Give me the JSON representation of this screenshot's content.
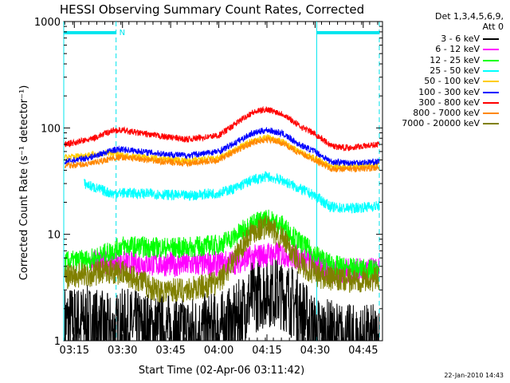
{
  "chart_data": {
    "type": "line",
    "title": "HESSI Observing Summary Count Rates, Corrected",
    "ylabel": "Corrected Count Rate (s⁻¹ detector⁻¹)",
    "xlabel": "Start Time (02-Apr-06 03:11:42)",
    "y_scale": "log",
    "ylim": [
      1,
      1000
    ],
    "yticks": [
      1,
      10,
      100,
      1000
    ],
    "ytick_labels": [
      "1",
      "10",
      "100",
      "1000"
    ],
    "xlim": [
      191.7,
      291
    ],
    "x_unit": "minutes after 00:00 UT, 02-Apr-06",
    "xticks": [
      195,
      210,
      225,
      240,
      255,
      270,
      285
    ],
    "xtick_labels": [
      "03:15",
      "03:30",
      "03:45",
      "04:00",
      "04:15",
      "04:30",
      "04:45"
    ],
    "legend_title": [
      "Det 1,3,4,5,6,9,",
      "Att 0"
    ],
    "footer_date": "22-Jan-2010 14:43",
    "night_marker": "N",
    "night_intervals": [
      [
        191.7,
        208
      ],
      [
        270.5,
        290
      ]
    ],
    "vertical_markers": [
      191.7,
      208,
      270.5,
      290
    ],
    "series": [
      {
        "name": "3 - 6 keV",
        "color": "#000000",
        "x": [
          192,
          200,
          207,
          210,
          220,
          230,
          240,
          245,
          250,
          255,
          260,
          265,
          270,
          275,
          280,
          290
        ],
        "y": [
          1.5,
          1.5,
          1.2,
          1.4,
          1.3,
          1.2,
          1.3,
          1.5,
          2.5,
          3.0,
          2.8,
          2.0,
          1.2,
          1.1,
          1.0,
          1.0
        ]
      },
      {
        "name": "6 - 12 keV",
        "color": "#ff00ff",
        "x": [
          200,
          205,
          210,
          220,
          230,
          240,
          245,
          250,
          255,
          260,
          265,
          270,
          275,
          280,
          290
        ],
        "y": [
          5.5,
          5.5,
          5.3,
          5.3,
          5.2,
          5.3,
          5.5,
          6.0,
          6.5,
          6.5,
          6.0,
          5.3,
          4.5,
          4.5,
          4.6
        ]
      },
      {
        "name": "12 - 25 keV",
        "color": "#00ff00",
        "x": [
          192,
          200,
          207,
          210,
          220,
          230,
          240,
          245,
          250,
          255,
          260,
          265,
          270,
          275,
          280,
          290
        ],
        "y": [
          5.5,
          5.8,
          7.0,
          7.8,
          7.5,
          7.5,
          8.0,
          9.5,
          12.5,
          14.0,
          12.0,
          8.5,
          6.5,
          5.2,
          4.8,
          4.6
        ]
      },
      {
        "name": "25 - 50 keV",
        "color": "#00ffff",
        "x": [
          198,
          202,
          207,
          210,
          220,
          230,
          240,
          245,
          250,
          255,
          260,
          265,
          270,
          275,
          280,
          290
        ],
        "y": [
          30,
          27,
          24,
          24.5,
          24,
          23,
          24.5,
          27,
          32,
          35,
          32,
          27,
          23,
          18,
          17.5,
          18.5
        ]
      },
      {
        "name": "50 - 100 keV",
        "color": "#ffcc00",
        "x": [
          192,
          200,
          207,
          210,
          220,
          230,
          240,
          245,
          250,
          255,
          260,
          265,
          270,
          275,
          280,
          290
        ],
        "y": [
          53,
          56,
          58,
          55,
          52,
          49,
          52,
          62,
          75,
          82,
          74,
          60,
          52,
          43,
          43,
          45
        ]
      },
      {
        "name": "100 - 300 keV",
        "color": "#0000ff",
        "x": [
          192,
          200,
          207,
          210,
          220,
          230,
          240,
          245,
          250,
          255,
          260,
          265,
          270,
          275,
          280,
          290
        ],
        "y": [
          48,
          53,
          62,
          63,
          58,
          55,
          60,
          72,
          88,
          96,
          88,
          70,
          60,
          48,
          47,
          48
        ]
      },
      {
        "name": "300 - 800 keV",
        "color": "#ff0000",
        "x": [
          192,
          200,
          207,
          210,
          220,
          230,
          240,
          245,
          250,
          255,
          260,
          265,
          270,
          275,
          280,
          290
        ],
        "y": [
          70,
          78,
          95,
          95,
          85,
          78,
          85,
          108,
          138,
          150,
          135,
          105,
          88,
          68,
          65,
          70
        ]
      },
      {
        "name": "800 - 7000 keV",
        "color": "#ff8800",
        "x": [
          192,
          200,
          207,
          210,
          220,
          230,
          240,
          245,
          250,
          255,
          260,
          265,
          270,
          275,
          280,
          290
        ],
        "y": [
          44,
          46,
          52,
          53,
          49,
          46,
          50,
          60,
          72,
          78,
          72,
          58,
          50,
          41,
          41,
          42
        ]
      },
      {
        "name": "7000 - 20000 keV",
        "color": "#808000",
        "x": [
          192,
          200,
          207,
          210,
          215,
          220,
          230,
          240,
          245,
          250,
          255,
          260,
          265,
          270,
          275,
          280,
          290
        ],
        "y": [
          4.0,
          4.2,
          4.5,
          4.3,
          3.8,
          3.0,
          3.0,
          3.5,
          6.0,
          10.5,
          12.0,
          9.0,
          5.5,
          4.2,
          3.8,
          3.7,
          3.8
        ]
      }
    ]
  }
}
